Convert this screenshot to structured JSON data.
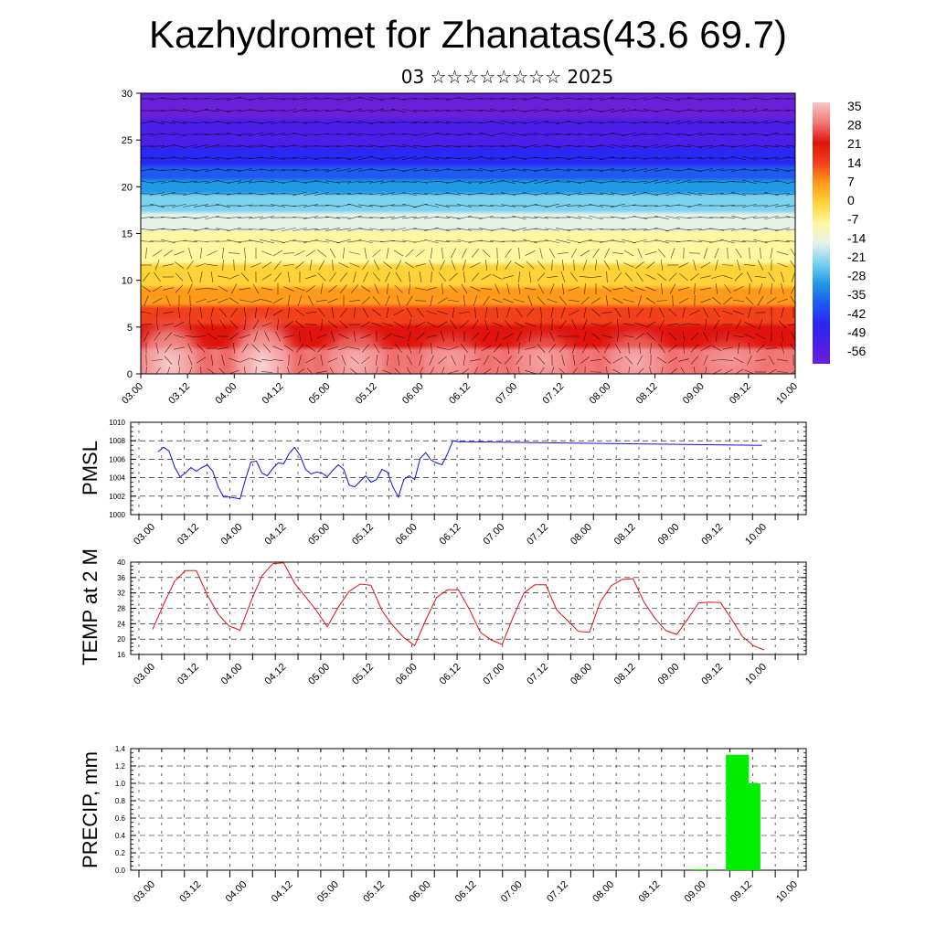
{
  "title": "Kazhydromet for Zhanatas(43.6 69.7)",
  "subtitle": "03 ☆☆☆☆☆☆☆☆ 2025",
  "time_labels": [
    "03.00",
    "03.12",
    "04.00",
    "04.12",
    "05.00",
    "05.12",
    "06.00",
    "06.12",
    "07.00",
    "07.12",
    "08.00",
    "08.12",
    "09.00",
    "09.12",
    "10.00"
  ],
  "chart_data": [
    {
      "type": "heatmap",
      "name": "temperature-wind-cross-section",
      "ylim": [
        0,
        30
      ],
      "yticks": [
        0,
        5,
        10,
        15,
        20,
        25,
        30
      ],
      "colorbar": {
        "labels": [
          "35",
          "28",
          "21",
          "14",
          "7",
          "0",
          "-7",
          "-14",
          "-21",
          "-28",
          "-35",
          "-42",
          "-49",
          "-56"
        ],
        "range": [
          -63,
          42
        ],
        "colors": [
          "#6a1fd8",
          "#4b1fe8",
          "#2828f2",
          "#1e5af0",
          "#1f9ae6",
          "#7cd2ef",
          "#e6f2e6",
          "#fff7a0",
          "#ffd23a",
          "#ff9a1a",
          "#f2401a",
          "#e0140c",
          "#f27878",
          "#f7c6c6"
        ]
      },
      "isotherm_heights_km": [
        {
          "temp": 35,
          "height": 1.5
        },
        {
          "temp": 0,
          "height": 11
        },
        {
          "temp": -14,
          "height": 16.5
        },
        {
          "temp": -35,
          "height": 21
        },
        {
          "temp": -56,
          "height": 25
        }
      ]
    },
    {
      "type": "line",
      "name": "PMSL",
      "ylabel": "PMSL",
      "ylim": [
        1000,
        1010
      ],
      "yticks": [
        1000,
        1002,
        1004,
        1006,
        1008,
        1010
      ],
      "color": "#1010e0",
      "x": [
        0.25,
        0.5,
        0.75,
        1,
        1.25,
        1.5,
        1.75,
        2,
        2.25,
        2.5,
        2.75,
        3,
        3.25,
        3.5,
        3.75,
        4,
        4.25,
        4.5,
        4.75,
        5,
        5.25,
        5.5,
        5.75,
        6,
        6.25,
        6.5,
        6.75,
        7,
        7.25,
        7.5,
        7.75,
        8,
        8.25,
        8.5,
        8.75,
        9,
        9.25,
        9.5,
        9.75,
        10,
        10.25,
        10.5,
        10.75,
        11,
        11.25,
        11.5,
        11.75,
        12,
        12.25,
        12.5,
        12.75,
        13,
        13.25,
        13.5,
        13.75,
        14
      ],
      "values": [
        1006.8,
        1007.3,
        1006.9,
        1005.2,
        1004.1,
        1004.5,
        1005.1,
        1004.7,
        1005.1,
        1005.4,
        1004.7,
        1003.0,
        1001.9,
        1001.9,
        1001.8,
        1001.7,
        1003.8,
        1005.7,
        1005.8,
        1004.5,
        1004.2,
        1005.0,
        1005.6,
        1005.5,
        1006.6,
        1007.3,
        1006.4,
        1004.9,
        1004.4,
        1004.6,
        1004.5,
        1004.1,
        1004.8,
        1005.4,
        1004.9,
        1003.2,
        1003.0,
        1003.6,
        1004.2,
        1003.5,
        1003.8,
        1004.9,
        1004.6,
        1003.0,
        1001.9,
        1003.8,
        1004.2,
        1003.8,
        1006.1,
        1006.7,
        1005.9,
        1005.6,
        1005.4,
        1006.6,
        1008.0,
        1007.9
      ],
      "x_end": 14.1,
      "value_end": 1007.5
    },
    {
      "type": "line",
      "name": "TEMP at 2 M",
      "ylabel": "TEMP at 2 M",
      "ylim": [
        16,
        40
      ],
      "yticks": [
        16,
        20,
        24,
        28,
        32,
        36,
        40
      ],
      "color": "#e01010",
      "x": [
        0,
        0.5,
        1,
        1.5,
        2,
        2.5,
        3,
        3.5,
        4,
        4.5,
        5,
        5.5,
        6,
        6.5,
        7,
        7.5,
        8,
        8.5,
        9,
        9.5,
        10,
        10.5,
        11,
        11.5,
        12,
        12.5,
        13,
        13.5,
        14,
        14.5,
        15,
        15.5,
        16,
        16.5,
        17,
        17.5,
        18,
        18.5,
        19,
        19.5,
        20,
        20.5,
        21,
        21.5,
        22,
        22.5,
        23,
        23.5,
        24,
        24.5,
        25,
        25.5,
        26,
        26.5,
        27,
        27.5,
        28
      ],
      "values": [
        22.5,
        29,
        35,
        37.8,
        37.8,
        31.5,
        26.5,
        23.4,
        22.3,
        29.8,
        36.4,
        39.6,
        39.8,
        34.5,
        31,
        27.4,
        23.2,
        28.3,
        32.4,
        34.3,
        34,
        27.4,
        23.5,
        20.4,
        18.3,
        24.9,
        30.8,
        32.8,
        32.8,
        27.8,
        21.8,
        19.8,
        18.6,
        25.6,
        32,
        34.1,
        34.1,
        27.6,
        24.8,
        22,
        21.8,
        29.7,
        33.9,
        35.5,
        35.7,
        29.6,
        25.4,
        22.2,
        21.2,
        25.2,
        29.4,
        29.6,
        29.5,
        25.3,
        20.7,
        18.3,
        17.2
      ]
    },
    {
      "type": "bar",
      "name": "PRECIP, mm",
      "ylabel": "PRECIP, mm",
      "ylim": [
        0,
        1.4
      ],
      "yticks": [
        0.0,
        0.2,
        0.4,
        0.6,
        0.8,
        1.0,
        1.2,
        1.4
      ],
      "color": "#00ee00",
      "bars": [
        {
          "x": 23.5,
          "value": 0.01
        },
        {
          "x": 25.0,
          "value": 1.33
        },
        {
          "x": 25.5,
          "value": 1.0
        }
      ]
    }
  ],
  "colors": {
    "pmsl_line": "#1010e0",
    "temp_line": "#e01010",
    "precip_bar": "#00ee00"
  }
}
